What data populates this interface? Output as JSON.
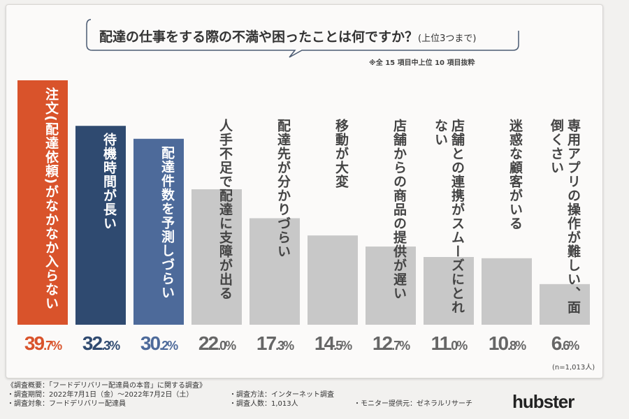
{
  "chart_data": {
    "type": "bar",
    "title": "配達の仕事をする際の不満や困ったことは何ですか？",
    "title_suffix": "(上位3つまで)",
    "note": "※全 15 項目中上位 10 項目抜粋",
    "categories": [
      "注文(配達依頼)がなかなか入らない",
      "待機時間が長い",
      "配達件数を予測しづらい",
      "人手不足で配達に支障が出る",
      "配達先が分かりづらい",
      "移動が大変",
      "店舗からの商品の提供が遅い",
      "店舗との連携がスムーズにとれない",
      "迷惑な顧客がいる",
      "専用アプリの操作が難しい、面倒くさい"
    ],
    "values": [
      39.7,
      32.3,
      30.2,
      22.0,
      17.3,
      14.5,
      12.7,
      11.0,
      10.8,
      6.6
    ],
    "value_labels": [
      [
        "39",
        ".7%"
      ],
      [
        "32",
        ".3%"
      ],
      [
        "30",
        ".2%"
      ],
      [
        "22",
        ".0%"
      ],
      [
        "17",
        ".3%"
      ],
      [
        "14",
        ".5%"
      ],
      [
        "12",
        ".7%"
      ],
      [
        "11",
        ".0%"
      ],
      [
        "10",
        ".8%"
      ],
      [
        "6",
        ".6%"
      ]
    ],
    "colors": [
      "#d9532b",
      "#2f4a70",
      "#4d6a9a",
      "#c8c8c8",
      "#c8c8c8",
      "#c8c8c8",
      "#c8c8c8",
      "#c8c8c8",
      "#c8c8c8",
      "#c8c8c8"
    ],
    "label_colors": [
      "#ffffff",
      "#ffffff",
      "#ffffff",
      "#444444",
      "#444444",
      "#444444",
      "#444444",
      "#444444",
      "#444444",
      "#444444"
    ],
    "value_colors": [
      "#d9532b",
      "#2f4a70",
      "#4d6a9a",
      "#666666",
      "#666666",
      "#666666",
      "#666666",
      "#666666",
      "#666666",
      "#666666"
    ],
    "ylim": [
      0,
      40
    ],
    "grid": false,
    "sample": "(n=1,013人)"
  },
  "footer": {
    "heading": "《調査概要：「フードデリバリー配達員の本音」に関する調査》",
    "period": "・調査期間：2022年7月1日（金）～2022年7月2日（土）",
    "method": "・調査方法：インターネット調査",
    "target": "・調査対象：フードデリバリー配達員",
    "count": "・調査人数：1,013人",
    "provider": "・モニター提供元：ゼネラルリサーチ"
  },
  "logo": "hubster"
}
